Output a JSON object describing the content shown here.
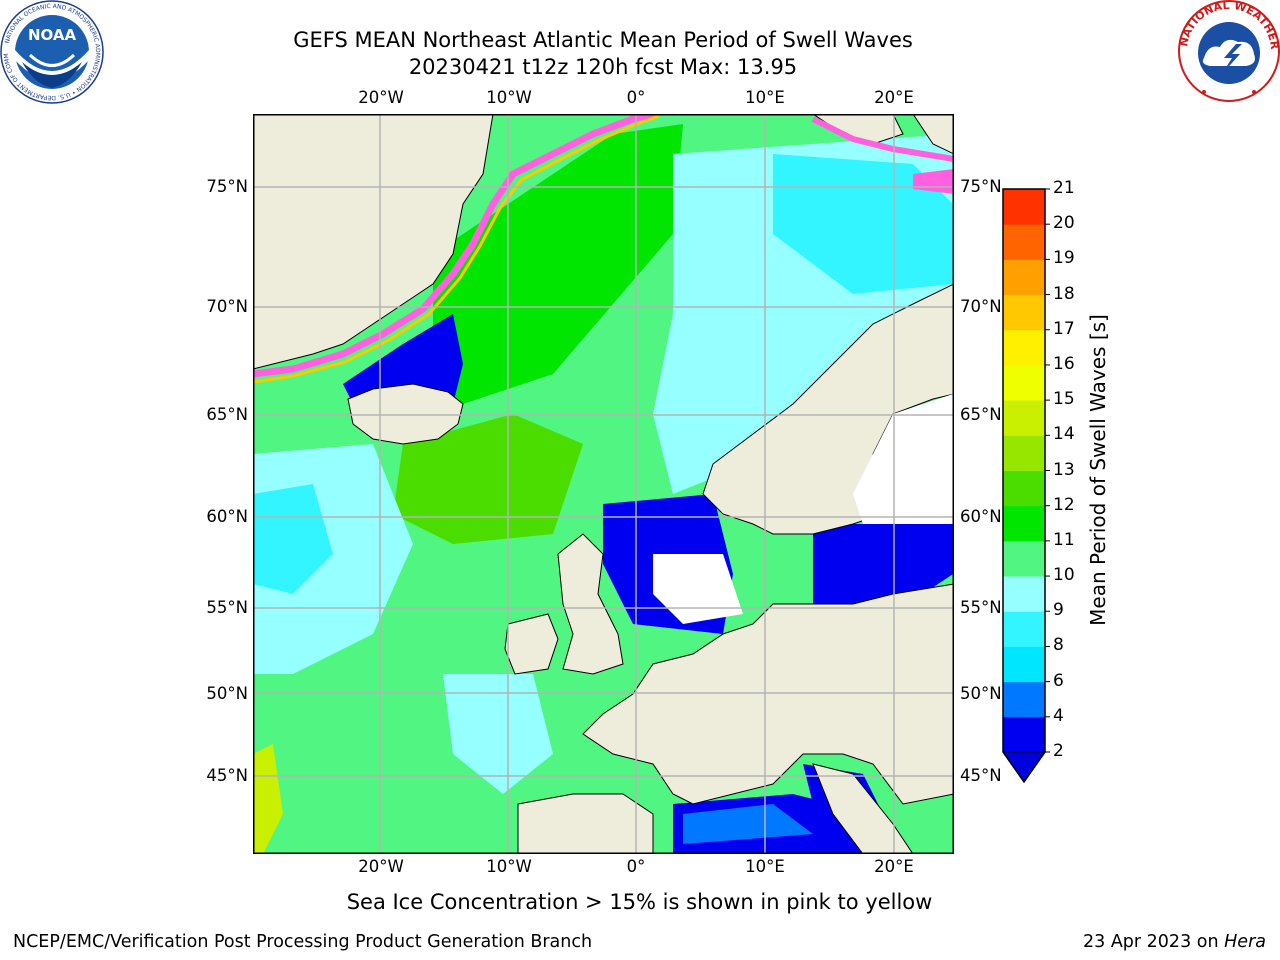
{
  "header": {
    "title_line1": "GEFS MEAN Northeast Atlantic Mean Period of Swell Waves",
    "title_line2": "20230421 t12z 120h fcst   Max: 13.95"
  },
  "logos": {
    "noaa_text": "NOAA",
    "noaa_ring_text": "NATIONAL OCEANIC AND ATMOSPHERIC ADMINISTRATION • U.S. DEPARTMENT OF COMMERCE",
    "nws_ring_text": "NATIONAL WEATHER SERVICE"
  },
  "map": {
    "lon_labels": [
      "20°W",
      "10°W",
      "0°",
      "10°E",
      "20°E"
    ],
    "lat_labels_left": [
      "75°N",
      "70°N",
      "65°N",
      "60°N",
      "55°N",
      "50°N",
      "45°N"
    ],
    "lat_labels_right": [
      "75°N",
      "70°N",
      "65°N",
      "60°N",
      "55°N",
      "50°N",
      "45°N"
    ],
    "colors": {
      "land": "#eeeddc",
      "grid": "#b4b4b4",
      "no_data": "#ffffff",
      "coastline": "#000000"
    }
  },
  "colorbar": {
    "title": "Mean Period of Swell Waves [s]",
    "tick_labels": [
      "2",
      "4",
      "6",
      "8",
      "9",
      "10",
      "11",
      "12",
      "13",
      "14",
      "15",
      "16",
      "17",
      "18",
      "19",
      "20",
      "21"
    ],
    "colors": [
      "#0000f0",
      "#0078ff",
      "#00e6ff",
      "#32f5ff",
      "#96ffff",
      "#50f582",
      "#00e600",
      "#4bdc00",
      "#96e600",
      "#c8f000",
      "#f0ff00",
      "#fff000",
      "#ffc800",
      "#ffa000",
      "#ff6400",
      "#ff3200",
      "#ff0000"
    ],
    "under_color": "#0000dc"
  },
  "notes": {
    "sea_ice": "Sea Ice Concentration > 15% is shown in pink to yellow"
  },
  "footer": {
    "left": "NCEP/EMC/Verification Post Processing Product Generation Branch",
    "right_date": "23 Apr 2023 on ",
    "right_host": "Hera"
  }
}
